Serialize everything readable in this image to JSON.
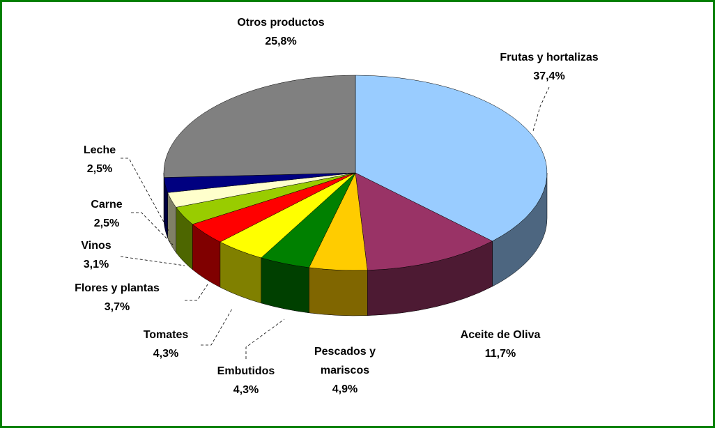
{
  "chart_data": {
    "type": "pie3d",
    "categories": [
      "Frutas y hortalizas",
      "Aceite de Oliva",
      "Pescados y mariscos",
      "Embutidos",
      "Tomates",
      "Flores y plantas",
      "Vinos",
      "Carne",
      "Leche",
      "Otros productos"
    ],
    "values": [
      37.4,
      11.7,
      4.9,
      4.3,
      4.3,
      3.7,
      3.1,
      2.5,
      2.5,
      25.8
    ],
    "value_labels": [
      "37,4%",
      "11,7%",
      "4,9%",
      "4,3%",
      "4,3%",
      "3,7%",
      "3,1%",
      "2,5%",
      "2,5%",
      "25,8%"
    ],
    "colors": [
      "#99ccff",
      "#993366",
      "#ffcc00",
      "#008000",
      "#ffff00",
      "#ff0000",
      "#99cc00",
      "#ffffcc",
      "#000080",
      "#808080"
    ]
  }
}
